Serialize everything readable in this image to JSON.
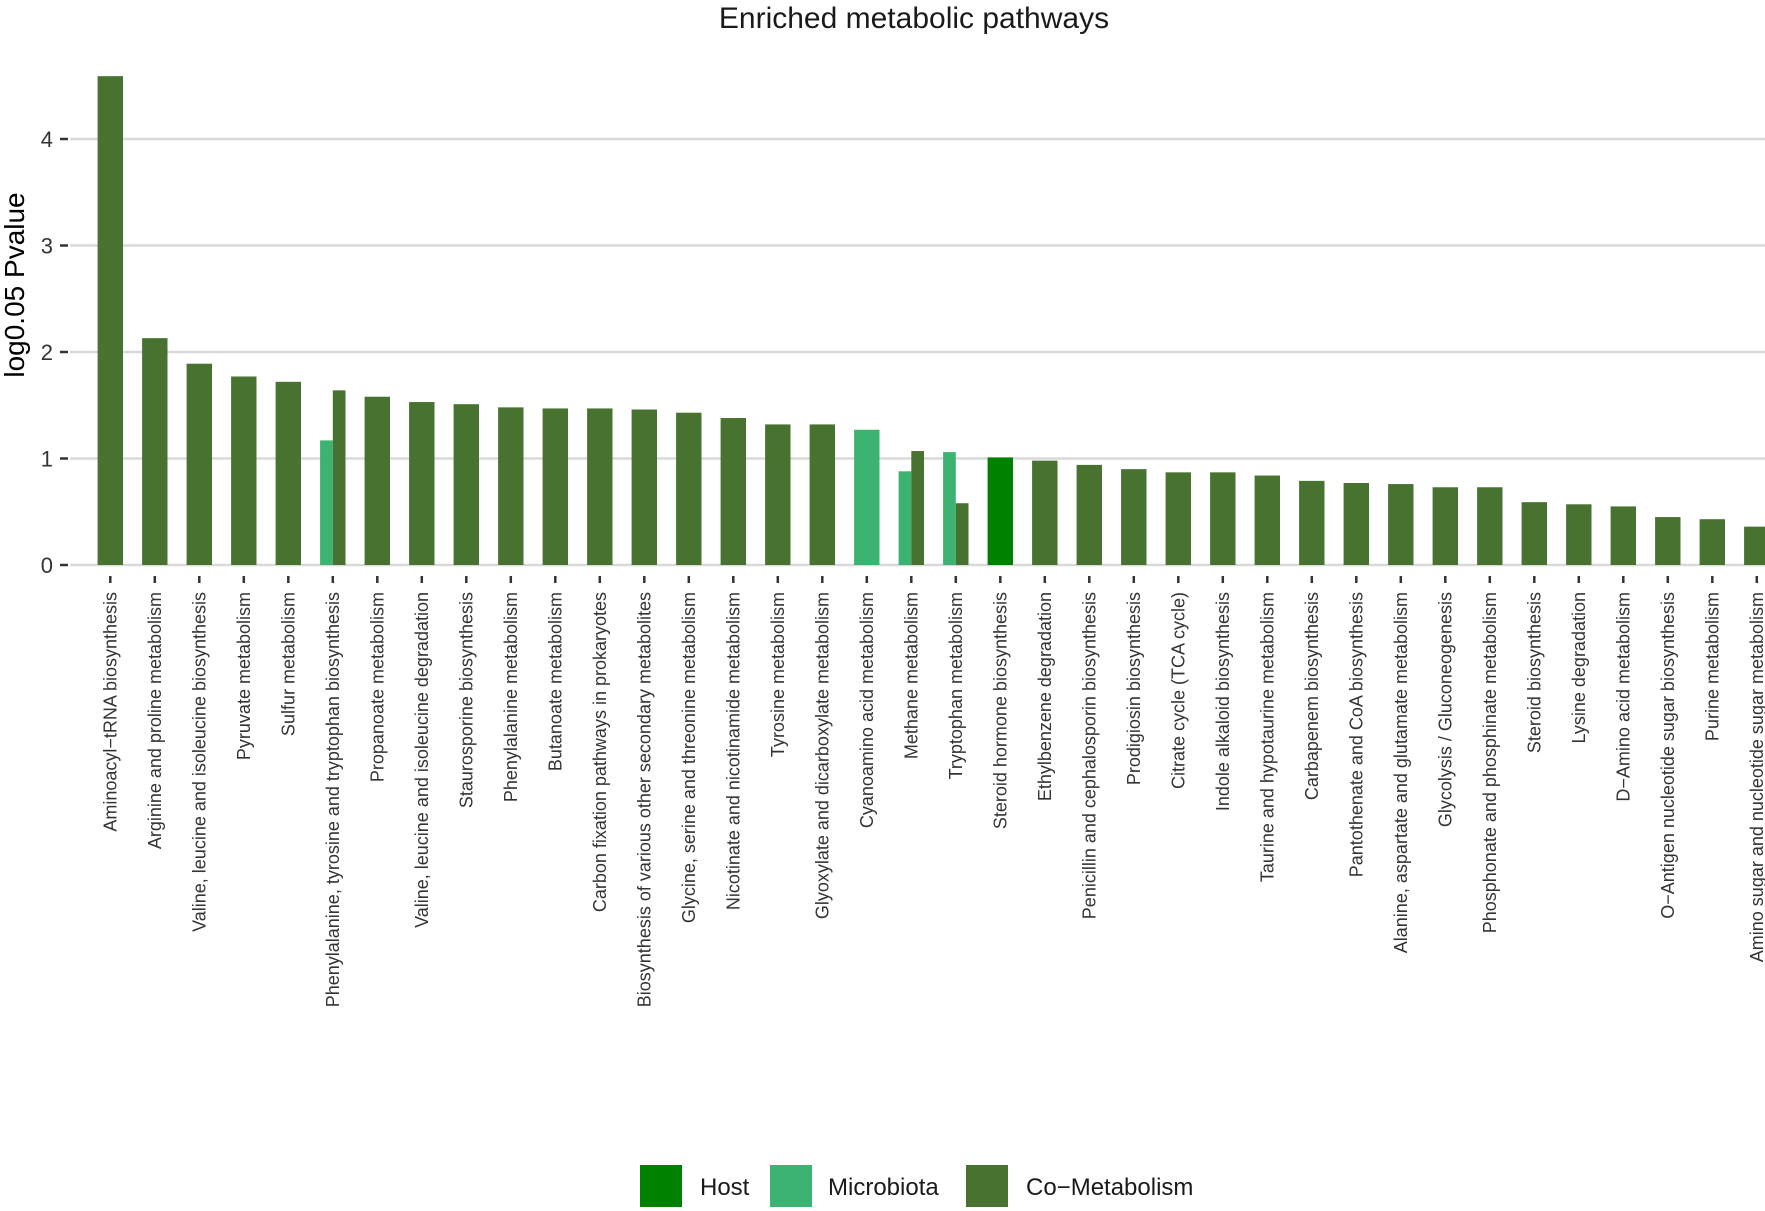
{
  "chart_data": {
    "type": "bar",
    "title": "Enriched metabolic pathways",
    "xlabel": "",
    "ylabel": "log0.05 Pvalue",
    "ylim": [
      0,
      4.6
    ],
    "yticks": [
      0,
      1,
      2,
      3,
      4
    ],
    "grid": true,
    "legend_position": "bottom",
    "colors": {
      "Host": "#008000",
      "Microbiota": "#3cb371",
      "Co-Metabolism": "#47722f"
    },
    "legend": [
      {
        "name": "Host",
        "label": "Host"
      },
      {
        "name": "Microbiota",
        "label": "Microbiota"
      },
      {
        "name": "Co-Metabolism",
        "label": "Co−Metabolism"
      }
    ],
    "categories": [
      "Aminoacyl−tRNA biosynthesis",
      "Arginine and proline metabolism",
      "Valine, leucine and isoleucine biosynthesis",
      "Pyruvate metabolism",
      "Sulfur metabolism",
      "Phenylalanine, tyrosine and tryptophan biosynthesis",
      "Propanoate metabolism",
      "Valine, leucine and isoleucine degradation",
      "Staurosporine biosynthesis",
      "Phenylalanine metabolism",
      "Butanoate metabolism",
      "Carbon fixation pathways in prokaryotes",
      "Biosynthesis of various other secondary metabolites",
      "Glycine, serine and threonine metabolism",
      "Nicotinate and nicotinamide metabolism",
      "Tyrosine metabolism",
      "Glyoxylate and dicarboxylate metabolism",
      "Cyanoamino acid metabolism",
      "Methane metabolism",
      "Tryptophan metabolism",
      "Steroid hormone biosynthesis",
      "Ethylbenzene degradation",
      "Penicillin and cephalosporin biosynthesis",
      "Prodigiosin biosynthesis",
      "Citrate cycle (TCA cycle)",
      "Indole alkaloid biosynthesis",
      "Taurine and hypotaurine metabolism",
      "Carbapenem biosynthesis",
      "Pantothenate and CoA biosynthesis",
      "Alanine, aspartate and glutamate metabolism",
      "Glycolysis / Gluconeogenesis",
      "Phosphonate and phosphinate metabolism",
      "Steroid biosynthesis",
      "Lysine degradation",
      "D−Amino acid metabolism",
      "O−Antigen nucleotide sugar biosynthesis",
      "Purine metabolism",
      "Amino sugar and nucleotide sugar metabolism"
    ],
    "bars": [
      [
        {
          "group": "Co-Metabolism",
          "value": 4.59
        }
      ],
      [
        {
          "group": "Co-Metabolism",
          "value": 2.13
        }
      ],
      [
        {
          "group": "Co-Metabolism",
          "value": 1.89
        }
      ],
      [
        {
          "group": "Co-Metabolism",
          "value": 1.77
        }
      ],
      [
        {
          "group": "Co-Metabolism",
          "value": 1.72
        }
      ],
      [
        {
          "group": "Microbiota",
          "value": 1.17
        },
        {
          "group": "Co-Metabolism",
          "value": 1.64
        }
      ],
      [
        {
          "group": "Co-Metabolism",
          "value": 1.58
        }
      ],
      [
        {
          "group": "Co-Metabolism",
          "value": 1.53
        }
      ],
      [
        {
          "group": "Co-Metabolism",
          "value": 1.51
        }
      ],
      [
        {
          "group": "Co-Metabolism",
          "value": 1.48
        }
      ],
      [
        {
          "group": "Co-Metabolism",
          "value": 1.47
        }
      ],
      [
        {
          "group": "Co-Metabolism",
          "value": 1.47
        }
      ],
      [
        {
          "group": "Co-Metabolism",
          "value": 1.46
        }
      ],
      [
        {
          "group": "Co-Metabolism",
          "value": 1.43
        }
      ],
      [
        {
          "group": "Co-Metabolism",
          "value": 1.38
        }
      ],
      [
        {
          "group": "Co-Metabolism",
          "value": 1.32
        }
      ],
      [
        {
          "group": "Co-Metabolism",
          "value": 1.32
        }
      ],
      [
        {
          "group": "Microbiota",
          "value": 1.27
        }
      ],
      [
        {
          "group": "Microbiota",
          "value": 0.88
        },
        {
          "group": "Co-Metabolism",
          "value": 1.07
        }
      ],
      [
        {
          "group": "Microbiota",
          "value": 1.06
        },
        {
          "group": "Co-Metabolism",
          "value": 0.58
        }
      ],
      [
        {
          "group": "Host",
          "value": 1.01
        }
      ],
      [
        {
          "group": "Co-Metabolism",
          "value": 0.98
        }
      ],
      [
        {
          "group": "Co-Metabolism",
          "value": 0.94
        }
      ],
      [
        {
          "group": "Co-Metabolism",
          "value": 0.9
        }
      ],
      [
        {
          "group": "Co-Metabolism",
          "value": 0.87
        }
      ],
      [
        {
          "group": "Co-Metabolism",
          "value": 0.87
        }
      ],
      [
        {
          "group": "Co-Metabolism",
          "value": 0.84
        }
      ],
      [
        {
          "group": "Co-Metabolism",
          "value": 0.79
        }
      ],
      [
        {
          "group": "Co-Metabolism",
          "value": 0.77
        }
      ],
      [
        {
          "group": "Co-Metabolism",
          "value": 0.76
        }
      ],
      [
        {
          "group": "Co-Metabolism",
          "value": 0.73
        }
      ],
      [
        {
          "group": "Co-Metabolism",
          "value": 0.73
        }
      ],
      [
        {
          "group": "Co-Metabolism",
          "value": 0.59
        }
      ],
      [
        {
          "group": "Co-Metabolism",
          "value": 0.57
        }
      ],
      [
        {
          "group": "Co-Metabolism",
          "value": 0.55
        }
      ],
      [
        {
          "group": "Co-Metabolism",
          "value": 0.45
        }
      ],
      [
        {
          "group": "Co-Metabolism",
          "value": 0.43
        }
      ],
      [
        {
          "group": "Co-Metabolism",
          "value": 0.36
        }
      ]
    ]
  }
}
